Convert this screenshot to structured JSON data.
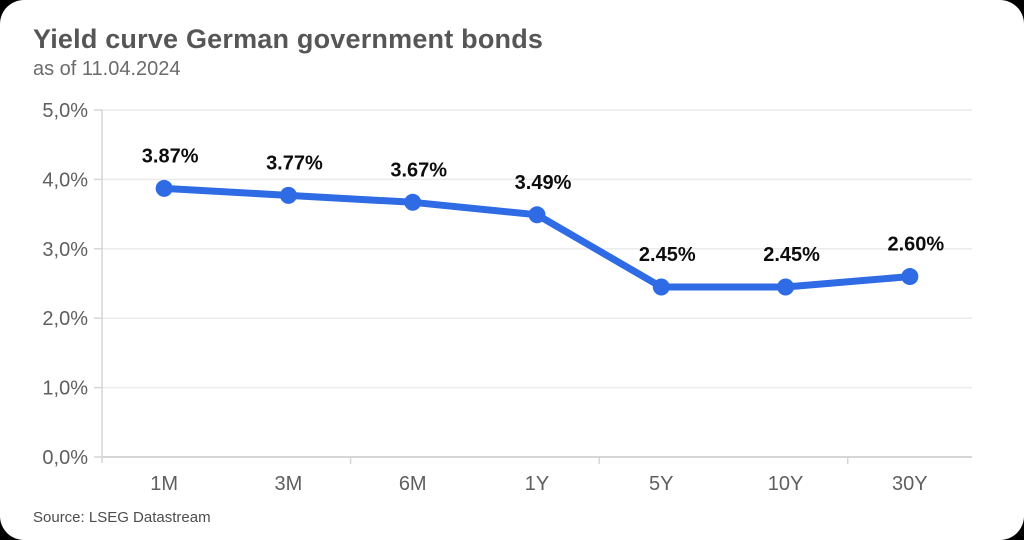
{
  "header": {
    "title": "Yield curve German government bonds",
    "subtitle": "as of 11.04.2024"
  },
  "footer": {
    "source": "Source: LSEG Datastream"
  },
  "chart_data": {
    "type": "line",
    "title": "Yield curve German government bonds",
    "subtitle": "as of 11.04.2024",
    "source": "Source: LSEG Datastream",
    "categories": [
      "1M",
      "3M",
      "6M",
      "1Y",
      "5Y",
      "10Y",
      "30Y"
    ],
    "values": [
      3.87,
      3.77,
      3.67,
      3.49,
      2.45,
      2.45,
      2.6
    ],
    "point_labels": [
      "3.87%",
      "3.77%",
      "3.67%",
      "3.49%",
      "2.45%",
      "2.45%",
      "2.60%"
    ],
    "y_ticks": [
      0,
      1,
      2,
      3,
      4,
      5
    ],
    "y_tick_labels": [
      "0,0%",
      "1,0%",
      "2,0%",
      "3,0%",
      "4,0%",
      "5,0%"
    ],
    "ylim": [
      0,
      5
    ],
    "xlabel": "",
    "ylabel": "",
    "grid": true,
    "legend": "none",
    "colors": {
      "line": "#2e6be4",
      "point": "#2e6be4",
      "data_label": "#0d0d0d",
      "grid_line": "#ebebeb",
      "axis_line": "#d6d6d6",
      "tick_label": "#5f5f5f"
    }
  }
}
